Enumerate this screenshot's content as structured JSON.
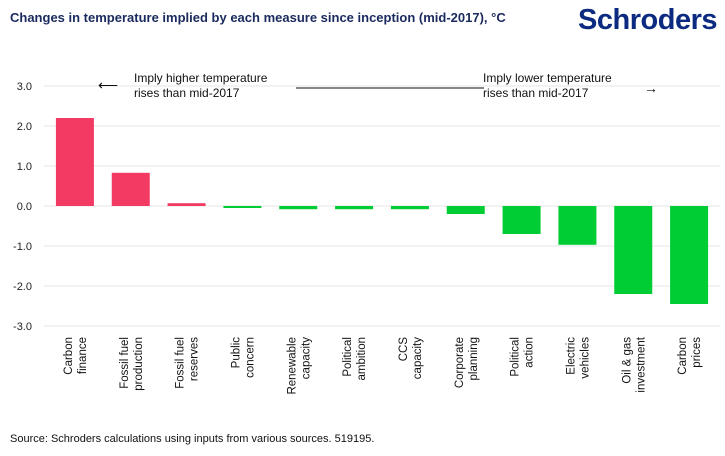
{
  "header": {
    "title": "Changes in temperature implied by each measure since inception (mid-2017), °C",
    "logo": "Schroders"
  },
  "source": "Source: Schroders calculations using inputs from various sources. 519195.",
  "colors": {
    "positive": "#f23a63",
    "negative": "#00cc33",
    "grid": "#e4e4e4"
  },
  "chart_data": {
    "type": "bar",
    "title": "Changes in temperature implied by each measure since inception (mid-2017), °C",
    "categories": [
      [
        "Carbon",
        "finance"
      ],
      [
        "Fossil fuel",
        "production"
      ],
      [
        "Fossil fuel",
        "reserves"
      ],
      [
        "Public",
        "concern"
      ],
      [
        "Renewable",
        "capacity"
      ],
      [
        "Political",
        "ambition"
      ],
      [
        "CCS",
        "capacity"
      ],
      [
        "Corporate",
        "planning"
      ],
      [
        "Political",
        "action"
      ],
      [
        "Electric",
        "vehicles"
      ],
      [
        "Oil & gas",
        "investment"
      ],
      [
        "Carbon",
        "prices"
      ]
    ],
    "values": [
      2.2,
      0.83,
      0.07,
      -0.05,
      -0.08,
      -0.08,
      -0.08,
      -0.2,
      -0.7,
      -0.97,
      -2.2,
      -2.45
    ],
    "ylim": [
      -3,
      3
    ],
    "yticks": [
      "3.0",
      "2.0",
      "1.0",
      "0.0",
      "-1.0",
      "-2.0",
      "-3.0"
    ],
    "grid": true,
    "annotations": {
      "left": [
        "Imply higher temperature",
        "rises than mid-2017"
      ],
      "right": [
        "Imply lower temperature",
        "rises than mid-2017"
      ]
    }
  }
}
